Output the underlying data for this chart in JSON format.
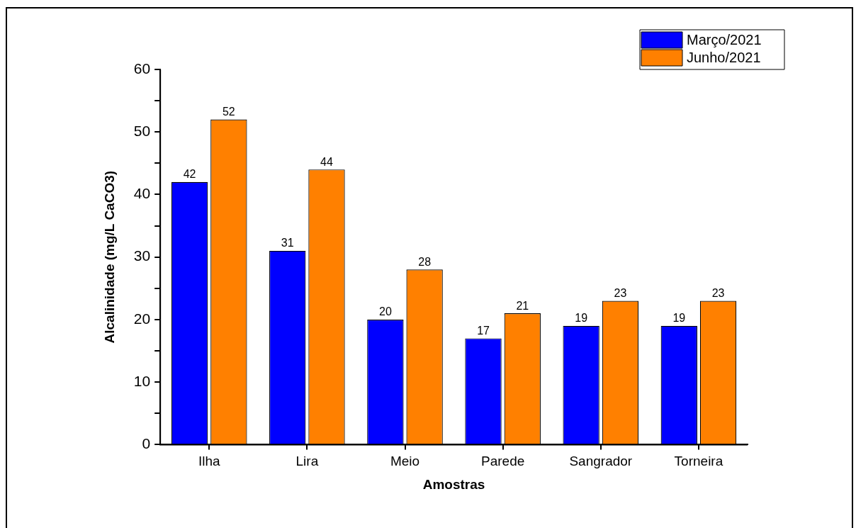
{
  "chart_data": {
    "type": "bar",
    "xlabel": "Amostras",
    "ylabel": "Alcalinidade (mg/L CaCO3)",
    "categories": [
      "Ilha",
      "Lira",
      "Meio",
      "Parede",
      "Sangrador",
      "Torneira"
    ],
    "series": [
      {
        "name": "Março/2021",
        "color": "#0000ff",
        "values": [
          42,
          31,
          20,
          17,
          19,
          19
        ]
      },
      {
        "name": "Junho/2021",
        "color": "#ff8000",
        "values": [
          52,
          44,
          28,
          21,
          23,
          23
        ]
      }
    ],
    "ylim": [
      0,
      60
    ],
    "yticks": [
      0,
      {
        "value": 5,
        "label": null
      },
      10,
      {
        "value": 15,
        "label": null
      },
      20,
      {
        "value": 25,
        "label": null
      },
      30,
      {
        "value": 35,
        "label": null
      },
      40,
      {
        "value": 45,
        "label": null
      },
      50,
      {
        "value": 55,
        "label": null
      },
      60
    ],
    "grid": false,
    "legend": "top right",
    "data_labels": true
  }
}
